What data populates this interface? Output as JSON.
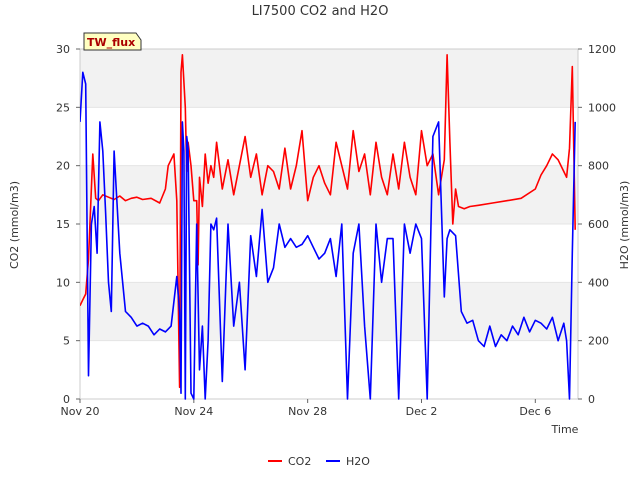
{
  "chart_data": {
    "type": "line",
    "title": "LI7500 CO2 and H2O",
    "xlabel": "Time",
    "ylabel_left": "CO2 (mmol/m3)",
    "ylabel_right": "H2O (mmol/m3)",
    "ylim_left": [
      0,
      30
    ],
    "ylim_right": [
      0,
      1200
    ],
    "xlim": [
      0,
      17.5
    ],
    "x_ticks": [
      0,
      4,
      8,
      12,
      16
    ],
    "x_tick_labels": [
      "Nov 20",
      "Nov 24",
      "Nov 28",
      "Dec 2",
      "Dec 6"
    ],
    "y_left_ticks": [
      0,
      5,
      10,
      15,
      20,
      25,
      30
    ],
    "y_right_ticks": [
      0,
      200,
      400,
      600,
      800,
      1000,
      1200
    ],
    "annotation": "TW_flux",
    "legend_position": "bottom-center",
    "series": [
      {
        "name": "CO2",
        "axis": "left",
        "color": "#ff0000",
        "x": [
          0.0,
          0.1,
          0.2,
          0.3,
          0.45,
          0.55,
          0.65,
          0.8,
          1.0,
          1.2,
          1.4,
          1.6,
          1.8,
          2.0,
          2.2,
          2.5,
          2.8,
          3.0,
          3.1,
          3.3,
          3.4,
          3.5,
          3.55,
          3.6,
          3.7,
          3.75,
          3.8,
          3.9,
          4.0,
          4.1,
          4.15,
          4.2,
          4.3,
          4.4,
          4.5,
          4.6,
          4.7,
          4.8,
          5.0,
          5.2,
          5.4,
          5.6,
          5.8,
          6.0,
          6.2,
          6.4,
          6.6,
          6.8,
          7.0,
          7.2,
          7.4,
          7.6,
          7.8,
          8.0,
          8.2,
          8.4,
          8.6,
          8.8,
          9.0,
          9.2,
          9.4,
          9.6,
          9.8,
          10.0,
          10.2,
          10.4,
          10.6,
          10.8,
          11.0,
          11.2,
          11.4,
          11.6,
          11.8,
          12.0,
          12.2,
          12.4,
          12.6,
          12.8,
          12.9,
          13.0,
          13.1,
          13.2,
          13.3,
          13.5,
          13.7,
          14.0,
          14.5,
          15.0,
          15.5,
          16.0,
          16.2,
          16.4,
          16.6,
          16.8,
          17.0,
          17.1,
          17.2,
          17.3,
          17.4
        ],
        "values": [
          8,
          8.5,
          9,
          12,
          21,
          17.2,
          17,
          17.5,
          17.3,
          17.1,
          17.4,
          17.0,
          17.2,
          17.3,
          17.1,
          17.2,
          16.8,
          18,
          20,
          21,
          17,
          1,
          28,
          29.5,
          25,
          19.5,
          22,
          20,
          17,
          17,
          11.5,
          19,
          16.5,
          21,
          18.5,
          20,
          19,
          22,
          18,
          20.5,
          17.5,
          20,
          22.5,
          19,
          21,
          17.5,
          20,
          19.5,
          18,
          21.5,
          18,
          20,
          23,
          17,
          19,
          20,
          18.5,
          17.5,
          22,
          20,
          18,
          23,
          19.5,
          21,
          17.5,
          22,
          19,
          17.5,
          21,
          18,
          22,
          19,
          17.5,
          23,
          20,
          21,
          17.5,
          20.5,
          29.5,
          22,
          15,
          18,
          16.5,
          16.3,
          16.5,
          16.6,
          16.8,
          17,
          17.2,
          18,
          19.2,
          20,
          21,
          20.5,
          19.5,
          19,
          21.5,
          28.5,
          14.5
        ]
      },
      {
        "name": "H2O",
        "axis": "right",
        "color": "#0000ff",
        "x": [
          0.0,
          0.1,
          0.2,
          0.3,
          0.4,
          0.5,
          0.6,
          0.7,
          0.8,
          0.9,
          1.0,
          1.1,
          1.2,
          1.4,
          1.6,
          1.8,
          2.0,
          2.2,
          2.4,
          2.6,
          2.8,
          3.0,
          3.2,
          3.4,
          3.5,
          3.55,
          3.6,
          3.65,
          3.7,
          3.75,
          3.8,
          3.9,
          4.0,
          4.1,
          4.2,
          4.3,
          4.4,
          4.5,
          4.6,
          4.7,
          4.8,
          5.0,
          5.2,
          5.4,
          5.6,
          5.8,
          6.0,
          6.2,
          6.4,
          6.6,
          6.8,
          7.0,
          7.2,
          7.4,
          7.6,
          7.8,
          8.0,
          8.2,
          8.4,
          8.6,
          8.8,
          9.0,
          9.2,
          9.4,
          9.6,
          9.8,
          10.0,
          10.2,
          10.4,
          10.6,
          10.8,
          11.0,
          11.2,
          11.4,
          11.6,
          11.8,
          12.0,
          12.2,
          12.4,
          12.6,
          12.8,
          12.9,
          13.0,
          13.2,
          13.4,
          13.6,
          13.8,
          14.0,
          14.2,
          14.4,
          14.6,
          14.8,
          15.0,
          15.2,
          15.4,
          15.6,
          15.8,
          16.0,
          16.2,
          16.4,
          16.6,
          16.8,
          17.0,
          17.1,
          17.2,
          17.3,
          17.4
        ],
        "values": [
          950,
          1120,
          1080,
          80,
          600,
          660,
          500,
          950,
          850,
          640,
          400,
          300,
          850,
          500,
          300,
          280,
          250,
          260,
          250,
          220,
          240,
          230,
          250,
          420,
          300,
          20,
          950,
          850,
          0,
          900,
          860,
          20,
          0,
          600,
          100,
          250,
          0,
          200,
          600,
          580,
          620,
          60,
          600,
          250,
          400,
          100,
          560,
          420,
          650,
          400,
          450,
          600,
          520,
          550,
          520,
          530,
          560,
          520,
          480,
          500,
          550,
          420,
          600,
          0,
          500,
          600,
          250,
          0,
          600,
          400,
          550,
          550,
          0,
          600,
          500,
          600,
          550,
          0,
          900,
          950,
          350,
          550,
          580,
          560,
          300,
          260,
          270,
          200,
          180,
          250,
          180,
          220,
          200,
          250,
          220,
          280,
          230,
          270,
          260,
          240,
          280,
          200,
          260,
          200,
          0,
          500,
          950
        ]
      }
    ]
  }
}
